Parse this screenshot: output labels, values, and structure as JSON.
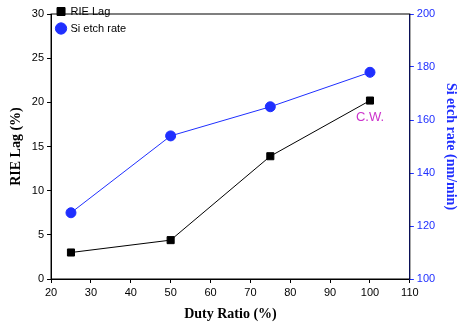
{
  "chart_data": {
    "type": "line",
    "x_label": "Duty Ratio (%)",
    "y_label": "RIE Lag (%)",
    "y2_label": "Si etch rate (nm/min)",
    "xlim": [
      20,
      110
    ],
    "xticks": [
      20,
      30,
      40,
      50,
      60,
      70,
      80,
      90,
      100,
      110
    ],
    "ylim": [
      0,
      30
    ],
    "yticks": [
      0,
      5,
      10,
      15,
      20,
      25,
      30
    ],
    "y2lim": [
      100,
      200
    ],
    "y2ticks": [
      100,
      120,
      140,
      160,
      180,
      200
    ],
    "grid": false,
    "legend": "upper left",
    "x": [
      25,
      50,
      75,
      100
    ],
    "series": [
      {
        "name": "RIE Lag",
        "color": "#000000",
        "marker": "square",
        "line_style": "solid",
        "values": [
          3.0,
          4.4,
          13.9,
          20.2
        ]
      },
      {
        "name": "Si etch rate",
        "color": "#1f2fff",
        "marker": "circle",
        "line_style": "solid",
        "axis": "y2",
        "values": [
          125,
          154,
          165,
          178
        ]
      }
    ],
    "annotations": [
      {
        "text": "C.W.",
        "x": 100,
        "y": 165,
        "axis": "y2",
        "color": "#cc33cc"
      }
    ]
  }
}
